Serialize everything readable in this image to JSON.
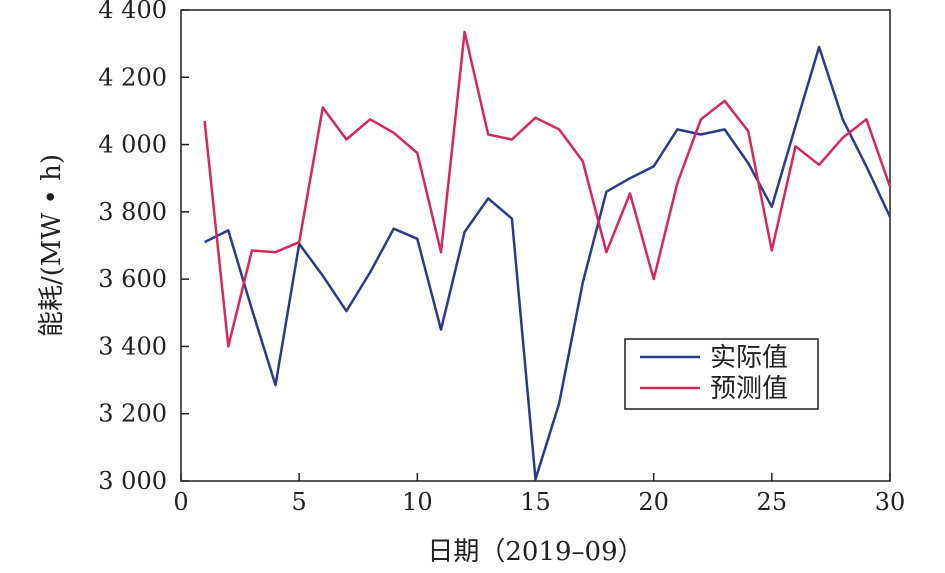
{
  "chart_data": {
    "type": "line",
    "xlabel": "日期（2019–09）",
    "ylabel": "能耗/(MW • h)",
    "xlim": [
      0,
      30
    ],
    "ylim": [
      3000,
      4400
    ],
    "xticks": [
      0,
      5,
      10,
      15,
      20,
      25,
      30
    ],
    "xtick_labels": [
      "0",
      "5",
      "10",
      "15",
      "20",
      "25",
      "30"
    ],
    "yticks": [
      3000,
      3200,
      3400,
      3600,
      3800,
      4000,
      4200,
      4400
    ],
    "ytick_labels": [
      "3 000",
      "3 200",
      "3 400",
      "3 600",
      "3 800",
      "4 000",
      "4 200",
      "4 400"
    ],
    "grid": false,
    "legend_position": "lower-right",
    "x": [
      1,
      2,
      3,
      4,
      5,
      6,
      7,
      8,
      9,
      10,
      11,
      12,
      13,
      14,
      15,
      16,
      17,
      18,
      19,
      20,
      21,
      22,
      23,
      24,
      25,
      26,
      27,
      28,
      29,
      30
    ],
    "series": [
      {
        "name": "实际值",
        "color": "#2b3a8c",
        "values": [
          3710,
          3745,
          3510,
          3285,
          3705,
          3610,
          3505,
          3620,
          3750,
          3720,
          3450,
          3740,
          3840,
          3780,
          3005,
          3230,
          3590,
          3860,
          3900,
          3935,
          4045,
          4030,
          4045,
          3945,
          3815,
          4055,
          4290,
          4075,
          3935,
          3785
        ]
      },
      {
        "name": "预测值",
        "color": "#d8285a",
        "values": [
          4070,
          3400,
          3685,
          3680,
          3710,
          4110,
          4015,
          4075,
          4035,
          3975,
          3680,
          4335,
          4030,
          4015,
          4080,
          4045,
          3950,
          3680,
          3855,
          3600,
          3885,
          4075,
          4130,
          4040,
          3685,
          3995,
          3940,
          4020,
          4075,
          3875
        ]
      }
    ]
  }
}
